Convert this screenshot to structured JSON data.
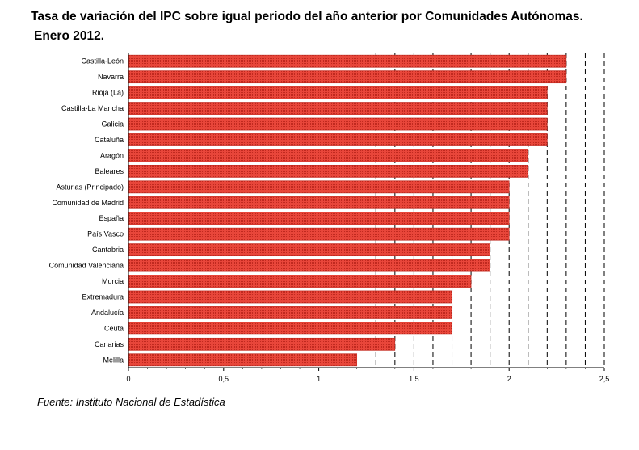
{
  "header": {
    "title_line1": "Tasa de variación del IPC sobre igual periodo del año anterior por Comunidades Autónomas.",
    "title_line2": "Enero 2012."
  },
  "footer": {
    "source": "Fuente: Instituto Nacional de Estadística"
  },
  "chart_data": {
    "type": "bar",
    "orientation": "horizontal",
    "categories": [
      "Castilla-León",
      "Navarra",
      "Rioja (La)",
      "Castilla-La Mancha",
      "Galicia",
      "Cataluña",
      "Aragón",
      "Baleares",
      "Asturias (Principado)",
      "Comunidad de Madrid",
      "España",
      "País Vasco",
      "Cantabria",
      "Comunidad Valenciana",
      "Murcia",
      "Extremadura",
      "Andalucía",
      "Ceuta",
      "Canarias",
      "Melilla"
    ],
    "values": [
      2.3,
      2.3,
      2.2,
      2.2,
      2.2,
      2.2,
      2.1,
      2.1,
      2.0,
      2.0,
      2.0,
      2.0,
      1.9,
      1.9,
      1.8,
      1.7,
      1.7,
      1.7,
      1.4,
      1.2
    ],
    "xlim": [
      0,
      2.5
    ],
    "xticks": [
      "0",
      "0,5",
      "1",
      "1,5",
      "2",
      "2,5"
    ],
    "xtick_values": [
      0,
      0.5,
      1,
      1.5,
      2,
      2.5
    ],
    "gridlines": [
      1.3,
      1.4,
      1.5,
      1.6,
      1.7,
      1.8,
      1.9,
      2.0,
      2.1,
      2.2,
      2.3,
      2.4,
      2.5
    ],
    "grid": "dashed vertical",
    "bar_color": "#e8463a",
    "bar_edge_color": "#c0291f"
  }
}
